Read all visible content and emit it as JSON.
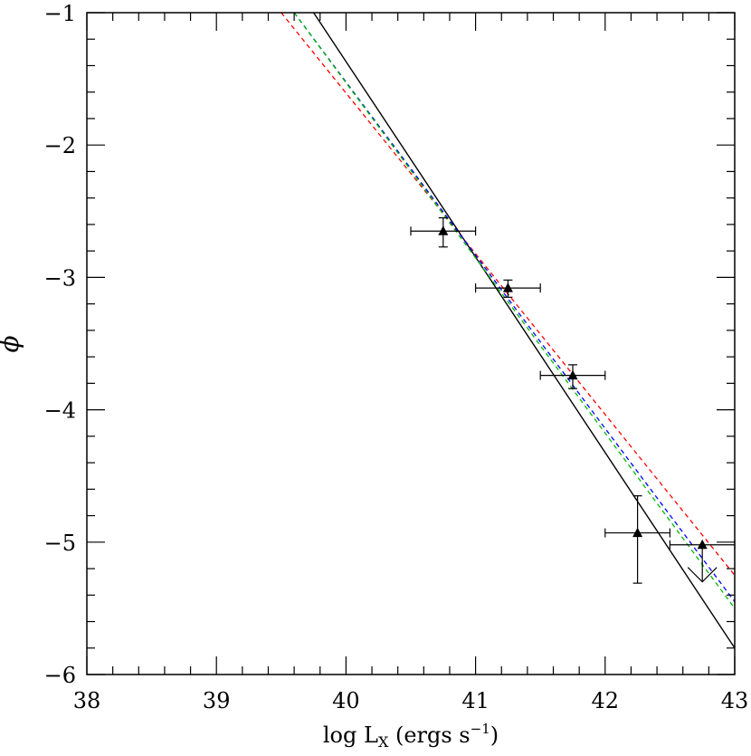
{
  "chart_data": {
    "type": "scatter",
    "title": "",
    "xlabel": {
      "main": "log L",
      "sub": "X",
      "units_pre": " (ergs s",
      "units_sup": "−1",
      "units_post": ")"
    },
    "ylabel": "ϕ",
    "xlim": [
      38,
      43
    ],
    "ylim": [
      -6,
      -1
    ],
    "x_ticks": [
      38,
      39,
      40,
      41,
      42,
      43
    ],
    "y_ticks": [
      -6,
      -5,
      -4,
      -3,
      -2,
      -1
    ],
    "x_tick_labels": [
      "38",
      "39",
      "40",
      "41",
      "42",
      "43"
    ],
    "y_tick_labels": [
      "−6",
      "−5",
      "−4",
      "−3",
      "−2",
      "−1"
    ],
    "grid": false,
    "points": [
      {
        "x": 40.75,
        "y": -2.65,
        "xerr": 0.25,
        "yerr_low": 0.12,
        "yerr_high": 0.1
      },
      {
        "x": 41.25,
        "y": -3.08,
        "xerr": 0.25,
        "yerr_low": 0.07,
        "yerr_high": 0.06
      },
      {
        "x": 41.75,
        "y": -3.74,
        "xerr": 0.25,
        "yerr_low": 0.1,
        "yerr_high": 0.08
      },
      {
        "x": 42.25,
        "y": -4.93,
        "xerr": 0.25,
        "yerr_low": 0.38,
        "yerr_high": 0.28
      },
      {
        "x": 42.75,
        "y": -5.02,
        "xerr": 0.25,
        "upper_limit": true,
        "arrow_to": -5.3
      }
    ],
    "lines": [
      {
        "color": "#000000",
        "style": "solid",
        "x": [
          39.75,
          43
        ],
        "y": [
          -1,
          -5.8
        ]
      },
      {
        "color": "#ff0000",
        "style": "dashed",
        "x": [
          39.5,
          43
        ],
        "y": [
          -1,
          -5.25
        ]
      },
      {
        "color": "#0000ff",
        "style": "dashed",
        "x": [
          39.6,
          43
        ],
        "y": [
          -1,
          -5.45
        ]
      },
      {
        "color": "#00bb00",
        "style": "dashed",
        "x": [
          39.6,
          43
        ],
        "y": [
          -1,
          -5.5
        ]
      }
    ]
  }
}
